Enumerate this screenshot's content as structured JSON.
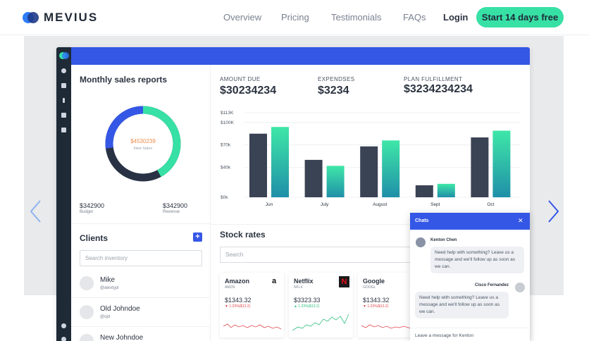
{
  "nav": {
    "brand": "MEVIUS",
    "links": [
      "Overview",
      "Pricing",
      "Testimonials",
      "FAQs"
    ],
    "login": "Login",
    "cta": "Start 14 days free"
  },
  "sales": {
    "title": "Monthly sales reports",
    "donut_value": "$4530239",
    "donut_label": "New Sales",
    "budget_value": "$342900",
    "budget_label": "Budget",
    "revenue_value": "$342900",
    "revenue_label": "Revenue",
    "donut_fraction": 0.42,
    "colors": {
      "primary": "#3557e6",
      "accent": "#37e0a5",
      "dark": "#283244"
    }
  },
  "kpis": [
    {
      "label": "AMOUNT DUE",
      "value": "$30234234"
    },
    {
      "label": "EXPENDSES",
      "value": "$3234"
    },
    {
      "label": "PLAN FULFILLMENT",
      "value": "$3234234234"
    }
  ],
  "chart_data": {
    "type": "bar",
    "categories": [
      "Jun",
      "July",
      "August",
      "Sept",
      "Oct"
    ],
    "series": [
      {
        "values": [
          85,
          50,
          68,
          16,
          80
        ]
      },
      {
        "values": [
          94,
          42,
          76,
          18,
          89
        ]
      }
    ],
    "ytick_labels": [
      "$0k",
      "$40k",
      "$70k",
      "$100K",
      "$113K"
    ],
    "ylim": [
      0,
      113
    ],
    "grid": true,
    "colors": [
      "#3a4354",
      "#37e0a5"
    ]
  },
  "clients": {
    "title": "Clients",
    "add_button": "+",
    "search_placeholder": "Search inventory",
    "items": [
      {
        "name": "Mike",
        "handle": "@alextypl"
      },
      {
        "name": "Old Johndoe",
        "handle": "@ojd"
      },
      {
        "name": "New Johndoe",
        "handle": ""
      }
    ]
  },
  "stocks": {
    "title": "Stock rates",
    "search_placeholder": "Search",
    "cards": [
      {
        "name": "Amazon",
        "ticker": "AMZN",
        "price": "$1343.32",
        "change": "▼ 1.23%($13.2)",
        "logo": "a"
      },
      {
        "name": "Netflix",
        "ticker": "NFLX",
        "price": "$3323.33",
        "change": "▲ 1.23%($13.2)",
        "logo": "N"
      },
      {
        "name": "Google",
        "ticker": "GOOGL",
        "price": "$1343.32",
        "change": "▼ 1.23%($13.2)",
        "logo": ""
      }
    ]
  },
  "chat": {
    "title": "Chats",
    "close": "✕",
    "messages": [
      {
        "author": "Kenton Chen",
        "text": "Need help with something? Leave us a message and we'll follow up as soon as we can."
      },
      {
        "author": "Cisco Fernandez",
        "text": "Need help with something? Leave us a message and we'll follow up as soon as we can."
      }
    ],
    "input_placeholder": "Leave a message for Kenton"
  }
}
